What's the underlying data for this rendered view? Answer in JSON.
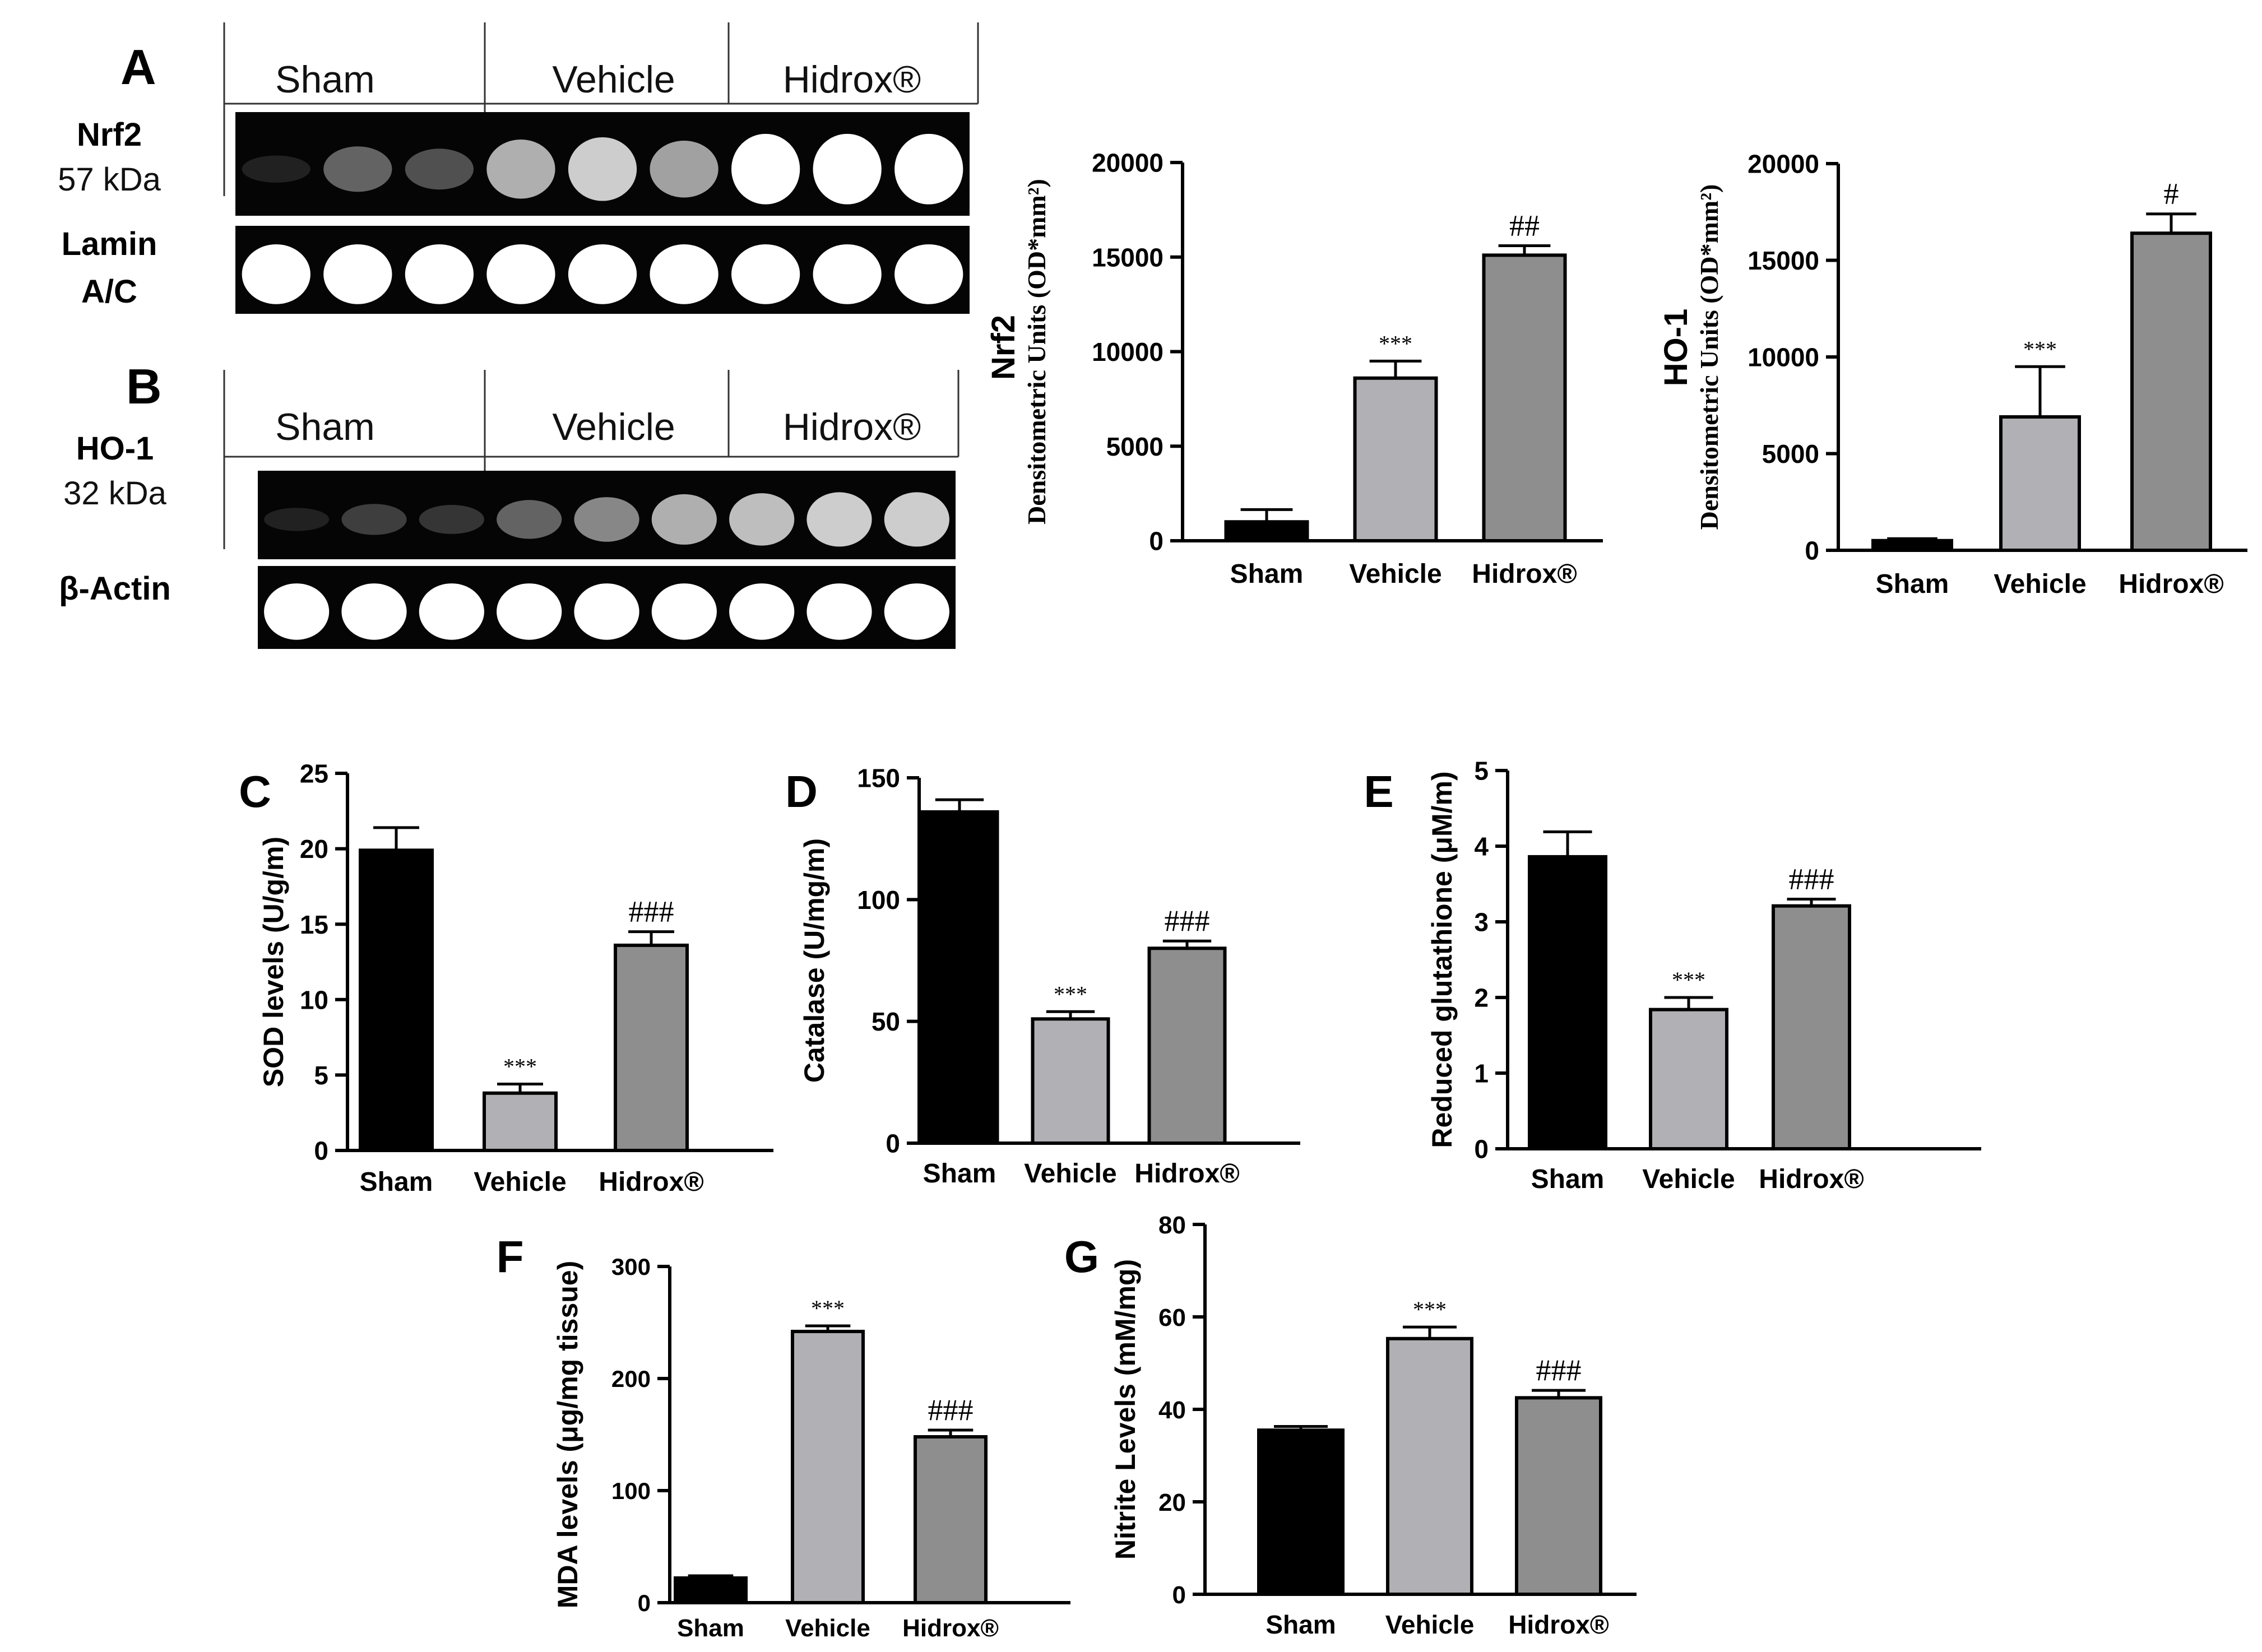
{
  "blots": [
    {
      "panel": "A",
      "groups": [
        "Sham",
        "Vehicle",
        "Hidrox®"
      ],
      "targets": [
        {
          "name": "Nrf2",
          "kda": "57 kDa",
          "band_intensity": [
            0.05,
            0.45,
            0.35,
            0.75,
            0.85,
            0.7,
            1.0,
            1.0,
            1.0
          ]
        },
        {
          "name": "Lamin\nA/C",
          "kda": "",
          "band_intensity": [
            1,
            1,
            1,
            1,
            1,
            1,
            1,
            1,
            1
          ]
        }
      ]
    },
    {
      "panel": "B",
      "groups": [
        "Sham",
        "Vehicle",
        "Hidrox®"
      ],
      "targets": [
        {
          "name": "HO-1",
          "kda": "32 kDa",
          "band_intensity": [
            0.05,
            0.25,
            0.2,
            0.45,
            0.6,
            0.75,
            0.8,
            0.85,
            0.85
          ]
        },
        {
          "name": "β-Actin",
          "kda": "",
          "band_intensity": [
            1,
            1,
            1,
            1,
            1,
            1,
            1,
            1,
            1
          ]
        }
      ]
    }
  ],
  "chart_data": [
    {
      "id": "nrf2",
      "type": "bar",
      "panel_label": "",
      "ylabel_top": "Nrf2",
      "ylabel": "Densitometric Units (OD*mm²)",
      "categories": [
        "Sham",
        "Vehicle",
        "Hidrox®"
      ],
      "values": [
        1000,
        8600,
        15100
      ],
      "errors": [
        650,
        900,
        500
      ],
      "annotations": [
        "",
        "***",
        "##"
      ],
      "ylim": [
        0,
        20000
      ],
      "yticks": [
        0,
        5000,
        10000,
        15000,
        20000
      ],
      "ytick_labels": [
        "0",
        "5000",
        "10000",
        "15000",
        "20000"
      ],
      "bar_colors": [
        "#000000",
        "#b0b0b5",
        "#8e8e8e"
      ]
    },
    {
      "id": "ho1",
      "type": "bar",
      "panel_label": "",
      "ylabel_top": "HO-1",
      "ylabel": "Densitometric Units (OD*mm²)",
      "categories": [
        "Sham",
        "Vehicle",
        "Hidrox®"
      ],
      "values": [
        500,
        6900,
        16400
      ],
      "errors": [
        100,
        2600,
        1000
      ],
      "annotations": [
        "",
        "***",
        "#"
      ],
      "ylim": [
        0,
        20000
      ],
      "yticks": [
        0,
        5000,
        10000,
        15000,
        20000
      ],
      "ytick_labels": [
        "0",
        "5000",
        "10000",
        "15000",
        "20000"
      ],
      "bar_colors": [
        "#000000",
        "#b0b0b5",
        "#8e8e8e"
      ]
    },
    {
      "id": "sod",
      "type": "bar",
      "panel_label": "C",
      "ylabel": "SOD levels (U/g/m)",
      "categories": [
        "Sham",
        "Vehicle",
        "Hidrox®"
      ],
      "values": [
        19.9,
        3.8,
        13.6
      ],
      "errors": [
        1.5,
        0.6,
        0.9
      ],
      "annotations": [
        "",
        "***",
        "###"
      ],
      "ylim": [
        0,
        25
      ],
      "yticks": [
        0,
        5,
        10,
        15,
        20,
        25
      ],
      "ytick_labels": [
        "0",
        "5",
        "10",
        "15",
        "20",
        "25"
      ],
      "bar_colors": [
        "#000000",
        "#b0b0b5",
        "#8e8e8e"
      ]
    },
    {
      "id": "catalase",
      "type": "bar",
      "panel_label": "D",
      "ylabel": "Catalase (U/mg/m)",
      "categories": [
        "Sham",
        "Vehicle",
        "Hidrox®"
      ],
      "values": [
        136,
        51,
        80
      ],
      "errors": [
        5,
        3,
        3
      ],
      "annotations": [
        "",
        "***",
        "###"
      ],
      "ylim": [
        0,
        150
      ],
      "yticks": [
        0,
        50,
        100,
        150
      ],
      "ytick_labels": [
        "0",
        "50",
        "100",
        "150"
      ],
      "bar_colors": [
        "#000000",
        "#b0b0b5",
        "#8e8e8e"
      ]
    },
    {
      "id": "gsh",
      "type": "bar",
      "panel_label": "E",
      "ylabel": "Reduced glutathione (μM/m)",
      "categories": [
        "Sham",
        "Vehicle",
        "Hidrox®"
      ],
      "values": [
        3.86,
        1.84,
        3.21
      ],
      "errors": [
        0.33,
        0.16,
        0.09
      ],
      "annotations": [
        "",
        "***",
        "###"
      ],
      "ylim": [
        0,
        5
      ],
      "yticks": [
        0,
        1,
        2,
        3,
        4,
        5
      ],
      "ytick_labels": [
        "0",
        "1",
        "2",
        "3",
        "4",
        "5"
      ],
      "bar_colors": [
        "#000000",
        "#b0b0b5",
        "#8e8e8e"
      ]
    },
    {
      "id": "mda",
      "type": "bar",
      "panel_label": "F",
      "ylabel": "MDA levels (μg/mg tissue)",
      "categories": [
        "Sham",
        "Vehicle",
        "Hidrox®"
      ],
      "values": [
        22,
        242,
        148
      ],
      "errors": [
        2,
        5,
        6
      ],
      "annotations": [
        "",
        "***",
        "###"
      ],
      "ylim": [
        0,
        300
      ],
      "yticks": [
        0,
        100,
        200,
        300
      ],
      "ytick_labels": [
        "0",
        "100",
        "200",
        "300"
      ],
      "bar_colors": [
        "#000000",
        "#b0b0b5",
        "#8e8e8e"
      ]
    },
    {
      "id": "nitrite",
      "type": "bar",
      "panel_label": "G",
      "ylabel": "Nitrite Levels (mM/mg)",
      "categories": [
        "Sham",
        "Vehicle",
        "Hidrox®"
      ],
      "values": [
        35.5,
        55.3,
        42.5
      ],
      "errors": [
        0.8,
        2.5,
        1.6
      ],
      "annotations": [
        "",
        "***",
        "###"
      ],
      "ylim": [
        0,
        80
      ],
      "yticks": [
        0,
        20,
        40,
        60,
        80
      ],
      "ytick_labels": [
        "0",
        "20",
        "40",
        "60",
        "80"
      ],
      "bar_colors": [
        "#000000",
        "#b0b0b5",
        "#8e8e8e"
      ]
    }
  ]
}
